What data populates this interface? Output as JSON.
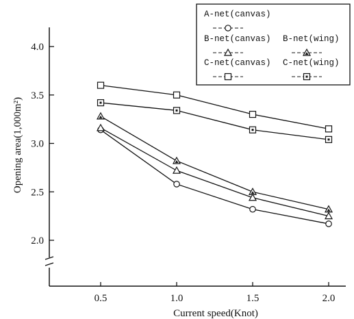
{
  "chart_data": {
    "type": "line",
    "xlabel": "Current speed(Knot)",
    "ylabel": "Opening area(1,000m²)",
    "x": [
      0.5,
      1.0,
      1.5,
      2.0
    ],
    "x_tick_labels": [
      "0.5",
      "1.0",
      "1.5",
      "2.0"
    ],
    "y_tick_labels": [
      "2.0",
      "2.5",
      "3.0",
      "3.5",
      "4.0"
    ],
    "xlim": [
      0.25,
      2.25
    ],
    "ylim": [
      1.5,
      4.25
    ],
    "y_axis_break": true,
    "grid": false,
    "legend_position": "top-right",
    "series": [
      {
        "name": "A-net(canvas)",
        "marker": "circle",
        "values": [
          3.14,
          2.58,
          2.32,
          2.17
        ]
      },
      {
        "name": "B-net(canvas)",
        "marker": "triangle-open",
        "values": [
          3.16,
          2.72,
          2.44,
          2.25
        ]
      },
      {
        "name": "B-net(wing)",
        "marker": "triangle-filled",
        "values": [
          3.28,
          2.82,
          2.5,
          2.32
        ]
      },
      {
        "name": "C-net(canvas)",
        "marker": "square-open",
        "values": [
          3.6,
          3.5,
          3.3,
          3.15
        ]
      },
      {
        "name": "C-net(wing)",
        "marker": "square-dot",
        "values": [
          3.42,
          3.34,
          3.14,
          3.04
        ]
      }
    ]
  }
}
